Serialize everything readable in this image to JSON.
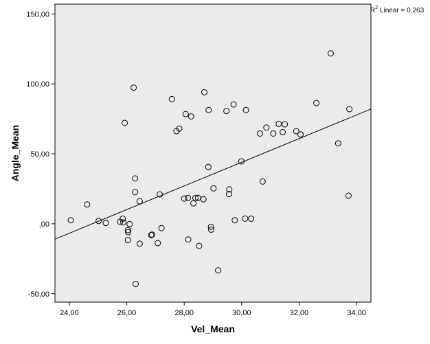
{
  "chart_data": {
    "type": "scatter",
    "xlabel": "Vel_Mean",
    "ylabel": "Angle_Mean",
    "xlim": [
      23.5,
      34.5
    ],
    "ylim": [
      -56,
      157
    ],
    "x_ticks": [
      24,
      26,
      28,
      30,
      32,
      34
    ],
    "x_tick_labels": [
      "24,00",
      "26,00",
      "28,00",
      "30,00",
      "32,00",
      "34,00"
    ],
    "y_ticks": [
      -50,
      0,
      50,
      100,
      150
    ],
    "y_tick_labels": [
      "-50,00",
      ",00",
      "50,00",
      "100,00",
      "150,00"
    ],
    "grid": false,
    "background": "#ebebeb",
    "marker": "open-circle",
    "fit_line": {
      "type": "linear",
      "x": [
        23.5,
        34.5
      ],
      "y": [
        -11,
        82
      ]
    },
    "annotation": {
      "prefix": "R",
      "superscript": "2",
      "text": " Linear = 0,263"
    },
    "points": [
      {
        "x": 24.05,
        "y": 2.5
      },
      {
        "x": 24.62,
        "y": 13.8
      },
      {
        "x": 25.02,
        "y": 2.0
      },
      {
        "x": 25.27,
        "y": 0.6
      },
      {
        "x": 25.77,
        "y": 1.4
      },
      {
        "x": 25.86,
        "y": 3.6
      },
      {
        "x": 25.88,
        "y": 1.0
      },
      {
        "x": 25.93,
        "y": 72.1
      },
      {
        "x": 26.04,
        "y": -4.5
      },
      {
        "x": 26.05,
        "y": -6.0
      },
      {
        "x": 26.04,
        "y": -11.7
      },
      {
        "x": 26.1,
        "y": -0.2
      },
      {
        "x": 26.24,
        "y": 97.3
      },
      {
        "x": 26.29,
        "y": 32.4
      },
      {
        "x": 26.29,
        "y": 22.6
      },
      {
        "x": 26.31,
        "y": -43.0
      },
      {
        "x": 26.45,
        "y": 16.1
      },
      {
        "x": 26.45,
        "y": -14.2
      },
      {
        "x": 26.85,
        "y": -8.1
      },
      {
        "x": 26.88,
        "y": -7.7
      },
      {
        "x": 27.08,
        "y": -13.8
      },
      {
        "x": 27.15,
        "y": 21.0
      },
      {
        "x": 27.21,
        "y": -3.1
      },
      {
        "x": 27.57,
        "y": 89.1
      },
      {
        "x": 27.73,
        "y": 66.2
      },
      {
        "x": 27.83,
        "y": 68.0
      },
      {
        "x": 28.0,
        "y": 18.0
      },
      {
        "x": 28.05,
        "y": 78.4
      },
      {
        "x": 28.13,
        "y": 18.5
      },
      {
        "x": 28.14,
        "y": -11.2
      },
      {
        "x": 28.24,
        "y": 76.7
      },
      {
        "x": 28.32,
        "y": 14.6
      },
      {
        "x": 28.39,
        "y": 18.5
      },
      {
        "x": 28.48,
        "y": 18.5
      },
      {
        "x": 28.52,
        "y": -15.8
      },
      {
        "x": 28.67,
        "y": 17.5
      },
      {
        "x": 28.7,
        "y": 94.0
      },
      {
        "x": 28.84,
        "y": 40.6
      },
      {
        "x": 28.85,
        "y": 81.3
      },
      {
        "x": 28.93,
        "y": -2.2
      },
      {
        "x": 28.94,
        "y": -4.2
      },
      {
        "x": 29.02,
        "y": 25.3
      },
      {
        "x": 29.18,
        "y": -33.3
      },
      {
        "x": 29.47,
        "y": 80.6
      },
      {
        "x": 29.56,
        "y": 21.2
      },
      {
        "x": 29.57,
        "y": 24.6
      },
      {
        "x": 29.72,
        "y": 85.3
      },
      {
        "x": 29.76,
        "y": 2.5
      },
      {
        "x": 29.99,
        "y": 44.6
      },
      {
        "x": 30.12,
        "y": 3.7
      },
      {
        "x": 30.15,
        "y": 81.3
      },
      {
        "x": 30.33,
        "y": 3.6
      },
      {
        "x": 30.64,
        "y": 64.5
      },
      {
        "x": 30.73,
        "y": 30.2
      },
      {
        "x": 30.86,
        "y": 68.8
      },
      {
        "x": 31.1,
        "y": 64.5
      },
      {
        "x": 31.29,
        "y": 71.4
      },
      {
        "x": 31.43,
        "y": 65.5
      },
      {
        "x": 31.5,
        "y": 71.1
      },
      {
        "x": 31.9,
        "y": 66.2
      },
      {
        "x": 32.05,
        "y": 63.9
      },
      {
        "x": 32.6,
        "y": 86.3
      },
      {
        "x": 33.1,
        "y": 121.8
      },
      {
        "x": 33.36,
        "y": 57.5
      },
      {
        "x": 33.72,
        "y": 20.1
      },
      {
        "x": 33.75,
        "y": 81.9
      }
    ]
  }
}
